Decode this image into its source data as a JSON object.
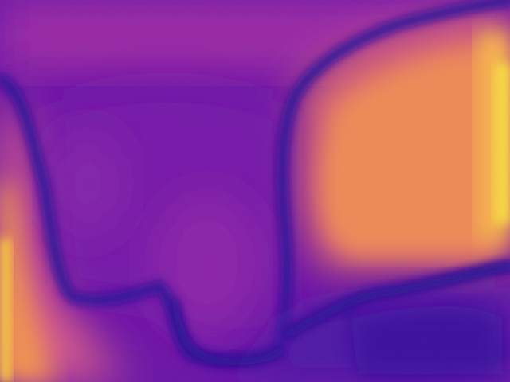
{
  "image": {
    "kind": "heatmap",
    "colormap": "plasma",
    "colors": {
      "low": "#1f0c8f",
      "mid_low": "#5a10a8",
      "mid": "#9a2aa6",
      "mid_high": "#d9568a",
      "high": "#f4a04a",
      "peak": "#f8e040"
    }
  }
}
